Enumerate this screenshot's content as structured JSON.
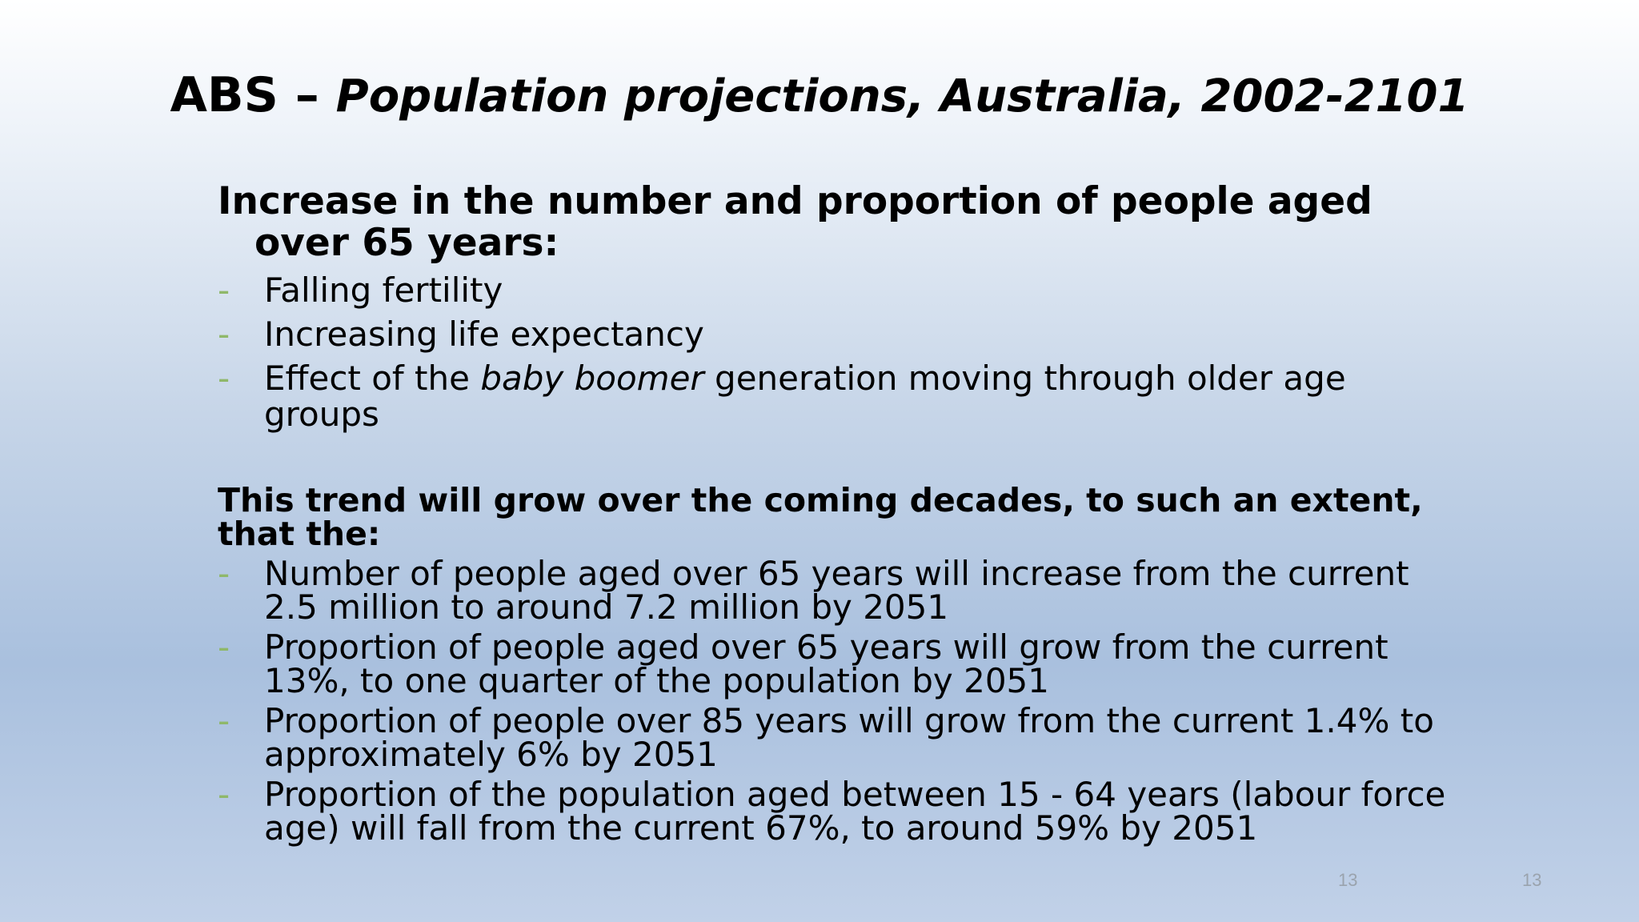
{
  "slide": {
    "title_main": "ABS –",
    "title_sub": "Population projections, Australia, 2002-2101",
    "heading1": "Increase in the number and proportion of people aged over 65 years:",
    "bullets1": [
      {
        "text": "Falling fertility"
      },
      {
        "text": "Increasing life expectancy"
      },
      {
        "prefix": "Effect of the ",
        "emph": "baby boomer",
        "suffix": " generation moving through older age groups"
      }
    ],
    "heading2": "This trend will grow over the coming decades, to such an extent, that the:",
    "bullets2": [
      "Number of people aged over 65 years will increase from the current 2.5 million to around 7.2 million by 2051",
      "Proportion of people aged over 65 years will grow from the current 13%, to one quarter of the population by 2051",
      "Proportion of people over 85 years will grow from the current 1.4% to approximately 6% by 2051",
      "Proportion of the population aged between 15 - 64 years (labour force age) will fall from the current 67%, to around 59% by 2051"
    ],
    "bullet_marker": "-",
    "page_number_left": "13",
    "page_number_right": "13"
  },
  "colors": {
    "bullet_dash": "#8fb86a",
    "text": "#000000",
    "page_number": "#9aa3ad"
  }
}
